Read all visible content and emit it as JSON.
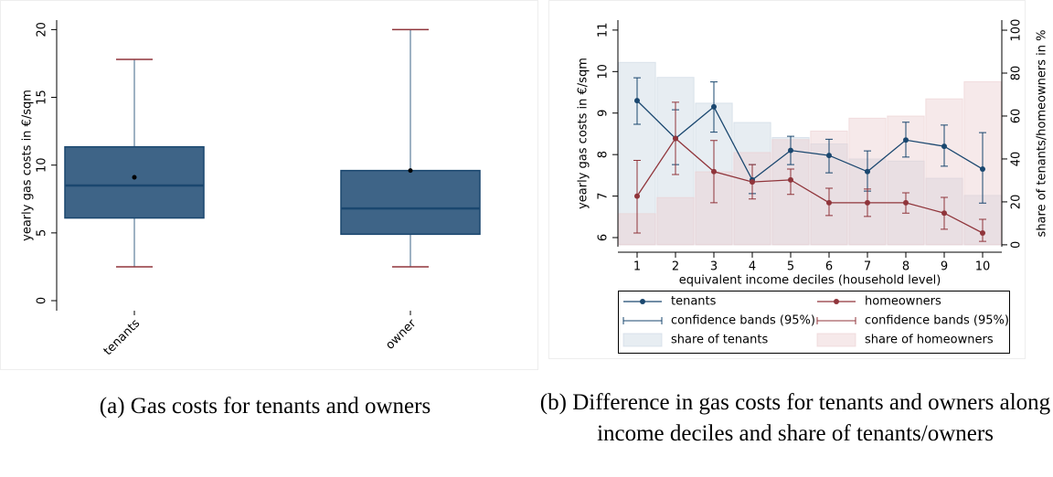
{
  "chart_data": [
    {
      "type": "box",
      "ylabel": "yearly gas costs in €/sqm",
      "categories": [
        "tenants",
        "owner"
      ],
      "color": "#3e6487",
      "edge_color": "#1a476f",
      "whisker_color": "#90353b",
      "boxes": [
        {
          "min": 2.5,
          "q1": 6.1,
          "median": 8.5,
          "q3": 11.35,
          "max": 17.8,
          "mean": 9.1
        },
        {
          "min": 2.5,
          "q1": 4.9,
          "median": 6.8,
          "q3": 9.6,
          "max": 20,
          "mean": 9.6
        }
      ],
      "ylim": [
        -0.74,
        20.7
      ],
      "yticks": [
        0,
        5,
        10,
        15,
        20
      ],
      "caption": "(a) Gas costs for tenants and owners"
    },
    {
      "type": "line",
      "xlabel": "equivalent income deciles (household level)",
      "ylabel": "yearly gas costs in €/sqm",
      "y2label": "share of tenants/homeowners in %",
      "x": [
        1,
        2,
        3,
        4,
        5,
        6,
        7,
        8,
        9,
        10
      ],
      "xlim": [
        0.5,
        10.5
      ],
      "xticks": [
        1,
        2,
        3,
        4,
        5,
        6,
        7,
        8,
        9,
        10
      ],
      "ylim": [
        5.78,
        11.24
      ],
      "yticks": [
        6,
        7,
        8,
        9,
        10,
        11
      ],
      "y2lim": [
        -0.9,
        104.7
      ],
      "y2ticks": [
        0,
        20,
        40,
        60,
        80,
        100
      ],
      "series": [
        {
          "name": "tenants",
          "type": "line",
          "color": "#1a476f",
          "values": [
            9.3,
            8.39,
            9.15,
            7.39,
            8.1,
            7.98,
            7.59,
            8.35,
            8.2,
            7.65
          ]
        },
        {
          "name": "homeowners",
          "type": "line",
          "color": "#90353b",
          "values": [
            7.0,
            8.39,
            7.59,
            7.34,
            7.39,
            6.84,
            6.84,
            6.84,
            6.59,
            6.11
          ]
        },
        {
          "name": "confidence bands (95%)",
          "type": "errorbar",
          "color": "#1a476f",
          "lower": [
            8.73,
            7.76,
            8.54,
            7.06,
            7.76,
            7.56,
            7.12,
            7.94,
            7.72,
            6.83
          ],
          "upper": [
            9.85,
            9.08,
            9.75,
            7.76,
            8.44,
            8.37,
            8.09,
            8.78,
            8.71,
            8.53
          ]
        },
        {
          "name": "confidence bands (95%)",
          "type": "errorbar",
          "color": "#90353b",
          "lower": [
            6.11,
            7.52,
            6.84,
            6.93,
            7.04,
            6.53,
            6.51,
            6.59,
            6.2,
            5.91
          ],
          "upper": [
            7.86,
            9.26,
            8.34,
            7.76,
            7.65,
            7.19,
            7.17,
            7.08,
            6.97,
            6.44
          ]
        },
        {
          "name": "share of tenants",
          "type": "bar",
          "axis": "y2",
          "color": "#c9d6e3",
          "values": [
            85,
            78,
            66,
            57,
            50,
            47,
            40,
            39,
            31,
            23
          ]
        },
        {
          "name": "share of homeowners",
          "type": "bar",
          "axis": "y2",
          "color": "#ebcfd1",
          "values": [
            14.5,
            22,
            34,
            43,
            49,
            53,
            59,
            60,
            68,
            76
          ]
        }
      ],
      "caption": "(b) Difference in gas costs for tenants and owners along income deciles and share of tenants/owners"
    }
  ]
}
